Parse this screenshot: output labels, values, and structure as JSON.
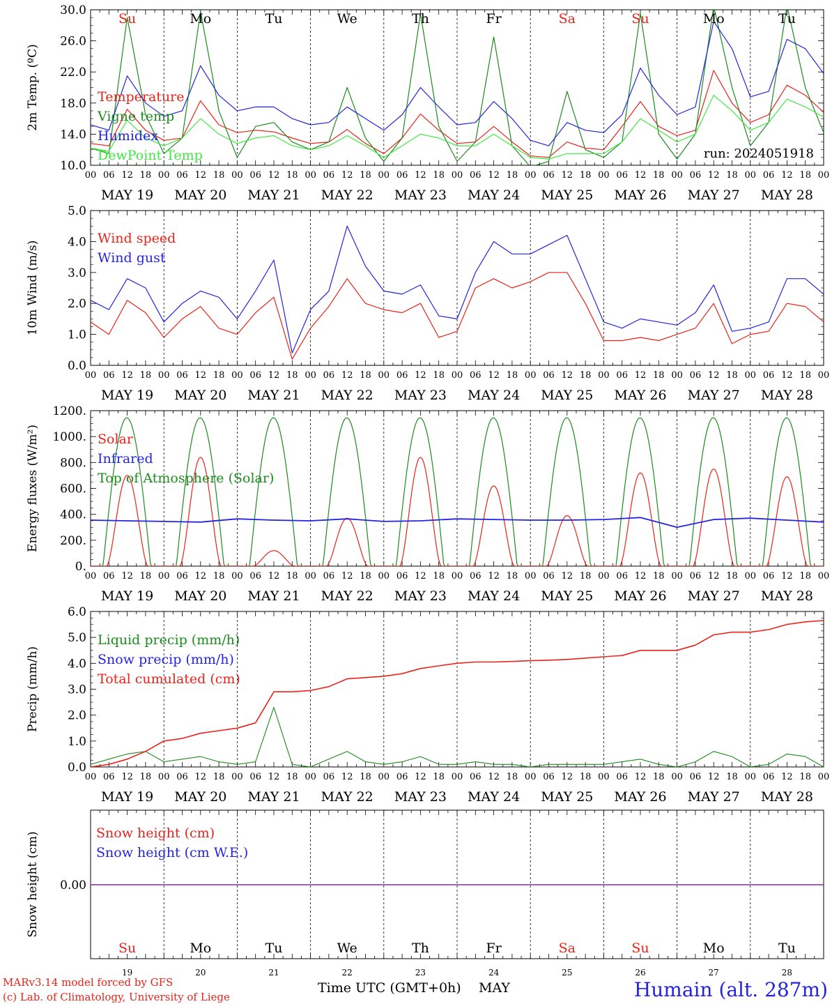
{
  "run_label": "run: 2024051918",
  "x_ticks": [
    "00",
    "06",
    "12",
    "18"
  ],
  "day_labels": [
    "MAY 19",
    "MAY 20",
    "MAY 21",
    "MAY 22",
    "MAY 23",
    "MAY 24",
    "MAY 25",
    "MAY 26",
    "MAY 27",
    "MAY 28"
  ],
  "weekdays": [
    "Su",
    "Mo",
    "Tu",
    "We",
    "Th",
    "Fr",
    "Sa",
    "Su",
    "Mo",
    "Tu"
  ],
  "weekday_colors": [
    "#e8231a",
    "#000000",
    "#000000",
    "#000000",
    "#000000",
    "#000000",
    "#e8231a",
    "#e8231a",
    "#000000",
    "#000000"
  ],
  "bottom_day_numbers": [
    "19",
    "20",
    "21",
    "22",
    "23",
    "24",
    "25",
    "26",
    "27",
    "28"
  ],
  "x_axis_title": "Time UTC (GMT+0h)",
  "x_axis_month": "MAY",
  "footer_left_1": "MARv3.14 model forced by GFS",
  "footer_left_2": "(c) Lab. of Climatology, University of Liege",
  "footer_right": "Humain (alt. 287m)",
  "colors": {
    "red": "#e8231a",
    "green": "#1d8a1d",
    "blue": "#2323e0",
    "lightgreen": "#3fe83f",
    "purple": "#7b2fa0"
  },
  "chart_data": [
    {
      "type": "line",
      "ylabel": "2m Temp. (ºC)",
      "ylim": [
        10,
        30
      ],
      "yticks": [
        "10.0",
        "14.0",
        "18.0",
        "22.0",
        "26.0",
        "30.0"
      ],
      "x_days": [
        0,
        0.25,
        0.5,
        0.75,
        1,
        1.25,
        1.5,
        1.75,
        2,
        2.25,
        2.5,
        2.75,
        3,
        3.25,
        3.5,
        3.75,
        4,
        4.25,
        4.5,
        4.75,
        5,
        5.25,
        5.5,
        5.75,
        6,
        6.25,
        6.5,
        6.75,
        7,
        7.25,
        7.5,
        7.75,
        8,
        8.25,
        8.5,
        8.75,
        9,
        9.25,
        9.5,
        9.75,
        10
      ],
      "series": [
        {
          "name": "Temperature",
          "color": "red",
          "values": [
            12.8,
            12.5,
            17.2,
            14.5,
            13.2,
            13.5,
            18.3,
            15.2,
            14.2,
            14.5,
            14.3,
            13.5,
            12.8,
            13.0,
            14.6,
            12.8,
            11.5,
            13.5,
            16.6,
            14.5,
            12.8,
            13.0,
            15.0,
            13.0,
            11.2,
            11.0,
            13.0,
            12.2,
            12.0,
            15.0,
            18.2,
            15.0,
            13.8,
            14.5,
            22.2,
            18.0,
            15.5,
            16.5,
            20.3,
            19.0,
            16.8
          ]
        },
        {
          "name": "Vigne temp",
          "color": "green",
          "values": [
            12.2,
            11.5,
            29.0,
            16.5,
            11.5,
            13.5,
            29.8,
            17.0,
            11.0,
            15.0,
            15.5,
            13.0,
            12.0,
            13.0,
            20.0,
            13.5,
            10.5,
            13.5,
            29.5,
            15.0,
            10.5,
            13.0,
            26.5,
            12.5,
            9.8,
            10.5,
            19.5,
            12.0,
            11.0,
            13.0,
            29.5,
            14.0,
            10.8,
            14.0,
            30.5,
            20.0,
            12.5,
            15.5,
            30.5,
            20.0,
            14.2
          ]
        },
        {
          "name": "Humidex",
          "color": "blue",
          "values": [
            15.2,
            14.5,
            21.5,
            18.0,
            16.3,
            17.0,
            22.8,
            19.0,
            17.0,
            17.5,
            17.5,
            16.0,
            15.2,
            15.5,
            17.5,
            16.0,
            14.5,
            16.5,
            20.0,
            17.5,
            15.2,
            15.5,
            18.2,
            16.0,
            13.2,
            12.5,
            15.5,
            14.5,
            14.2,
            16.5,
            22.5,
            19.0,
            16.5,
            17.5,
            28.5,
            25.0,
            18.8,
            19.5,
            26.2,
            25.0,
            21.8
          ]
        },
        {
          "name": "DewPoint Temp",
          "color": "lightgreen",
          "values": [
            12.2,
            11.8,
            15.8,
            13.5,
            12.5,
            13.5,
            16.0,
            14.0,
            12.8,
            13.5,
            13.8,
            12.5,
            12.0,
            12.5,
            13.8,
            12.5,
            11.0,
            12.5,
            14.0,
            13.5,
            12.5,
            12.5,
            14.0,
            12.5,
            11.0,
            10.8,
            11.5,
            11.5,
            11.5,
            13.0,
            16.0,
            14.5,
            13.0,
            14.0,
            19.0,
            17.0,
            14.5,
            15.5,
            18.5,
            17.5,
            16.2
          ]
        }
      ]
    },
    {
      "type": "line",
      "ylabel": "10m Wind (m/s)",
      "ylim": [
        0,
        5
      ],
      "yticks": [
        "0.0",
        "1.0",
        "2.0",
        "3.0",
        "4.0",
        "5.0"
      ],
      "x_days": [
        0,
        0.25,
        0.5,
        0.75,
        1,
        1.25,
        1.5,
        1.75,
        2,
        2.25,
        2.5,
        2.75,
        3,
        3.25,
        3.5,
        3.75,
        4,
        4.25,
        4.5,
        4.75,
        5,
        5.25,
        5.5,
        5.75,
        6,
        6.25,
        6.5,
        6.75,
        7,
        7.25,
        7.5,
        7.75,
        8,
        8.25,
        8.5,
        8.75,
        9,
        9.25,
        9.5,
        9.75,
        10
      ],
      "series": [
        {
          "name": "Wind speed",
          "color": "red",
          "values": [
            1.4,
            1.0,
            2.1,
            1.7,
            0.9,
            1.5,
            1.9,
            1.2,
            1.0,
            1.7,
            2.2,
            0.2,
            1.2,
            1.9,
            2.8,
            2.0,
            1.8,
            1.7,
            2.0,
            0.9,
            1.1,
            2.5,
            2.8,
            2.5,
            2.7,
            3.0,
            3.0,
            2.0,
            0.8,
            0.8,
            0.9,
            0.8,
            1.0,
            1.2,
            2.0,
            0.7,
            1.0,
            1.1,
            2.0,
            1.9,
            1.4
          ]
        },
        {
          "name": "Wind gust",
          "color": "blue",
          "values": [
            2.1,
            1.8,
            2.8,
            2.5,
            1.4,
            2.0,
            2.4,
            2.2,
            1.5,
            2.4,
            3.4,
            0.4,
            1.8,
            2.4,
            4.5,
            3.2,
            2.4,
            2.3,
            2.6,
            1.6,
            1.5,
            3.0,
            4.0,
            3.6,
            3.6,
            3.9,
            4.2,
            2.8,
            1.4,
            1.2,
            1.5,
            1.4,
            1.3,
            1.7,
            2.6,
            1.1,
            1.2,
            1.4,
            2.8,
            2.8,
            2.3
          ]
        }
      ]
    },
    {
      "type": "line",
      "ylabel": "Energy fluxes (W/m²)",
      "ylim": [
        0,
        1200
      ],
      "yticks": [
        "0.",
        "200.",
        "400.",
        "600.",
        "800.",
        "1000.",
        "1200."
      ],
      "series": [
        {
          "name": "Solar",
          "color": "red",
          "day_peaks": [
            700,
            840,
            120,
            370,
            840,
            620,
            390,
            720,
            750,
            690
          ]
        },
        {
          "name": "Infrared",
          "color": "blue",
          "x_days": [
            0,
            0.5,
            1,
            1.5,
            2,
            2.5,
            3,
            3.5,
            4,
            4.5,
            5,
            5.5,
            6,
            6.5,
            7,
            7.5,
            8,
            8.5,
            9,
            9.5,
            10
          ],
          "values": [
            355,
            350,
            345,
            340,
            365,
            355,
            350,
            365,
            345,
            350,
            365,
            360,
            355,
            355,
            360,
            375,
            300,
            360,
            370,
            355,
            340
          ]
        },
        {
          "name": "Top of Atmosphere (Solar)",
          "color": "green",
          "day_peak": 1145
        }
      ]
    },
    {
      "type": "line",
      "ylabel": "Precip (mm/h)",
      "ylim": [
        0,
        6
      ],
      "yticks": [
        "0.0",
        "1.0",
        "2.0",
        "3.0",
        "4.0",
        "5.0",
        "6.0"
      ],
      "x_days": [
        0,
        0.25,
        0.5,
        0.75,
        1,
        1.25,
        1.5,
        1.75,
        2,
        2.25,
        2.5,
        2.75,
        3,
        3.25,
        3.5,
        3.75,
        4,
        4.25,
        4.5,
        4.75,
        5,
        5.25,
        5.5,
        5.75,
        6,
        6.25,
        6.5,
        6.75,
        7,
        7.25,
        7.5,
        7.75,
        8,
        8.25,
        8.5,
        8.75,
        9,
        9.25,
        9.5,
        9.75,
        10
      ],
      "series": [
        {
          "name": "Liquid precip (mm/h)",
          "color": "green",
          "values": [
            0.1,
            0.3,
            0.5,
            0.6,
            0.2,
            0.3,
            0.4,
            0.2,
            0.1,
            0.2,
            2.3,
            0.1,
            0.0,
            0.3,
            0.6,
            0.2,
            0.1,
            0.2,
            0.4,
            0.1,
            0.1,
            0.2,
            0.1,
            0.1,
            0.0,
            0.1,
            0.1,
            0.1,
            0.1,
            0.2,
            0.3,
            0.1,
            0.0,
            0.2,
            0.6,
            0.4,
            0.0,
            0.1,
            0.5,
            0.4,
            0.0
          ]
        },
        {
          "name": "Snow precip (mm/h)",
          "color": "blue",
          "values": []
        },
        {
          "name": "Total cumulated (cm)",
          "color": "red",
          "values": [
            0.0,
            0.1,
            0.3,
            0.6,
            1.0,
            1.1,
            1.3,
            1.4,
            1.5,
            1.7,
            2.9,
            2.9,
            2.95,
            3.1,
            3.4,
            3.45,
            3.5,
            3.6,
            3.8,
            3.9,
            4.0,
            4.05,
            4.05,
            4.07,
            4.1,
            4.12,
            4.15,
            4.2,
            4.25,
            4.3,
            4.5,
            4.5,
            4.5,
            4.7,
            5.1,
            5.2,
            5.2,
            5.3,
            5.5,
            5.6,
            5.65
          ]
        }
      ]
    },
    {
      "type": "line",
      "ylabel": "Snow height (cm)",
      "yticks": [
        "0.00"
      ],
      "series": [
        {
          "name": "Snow height (cm)",
          "color": "red",
          "values": [
            0,
            0
          ]
        },
        {
          "name": "Snow height (cm W.E.)",
          "color": "blue",
          "values": [
            0,
            0
          ]
        }
      ]
    }
  ]
}
